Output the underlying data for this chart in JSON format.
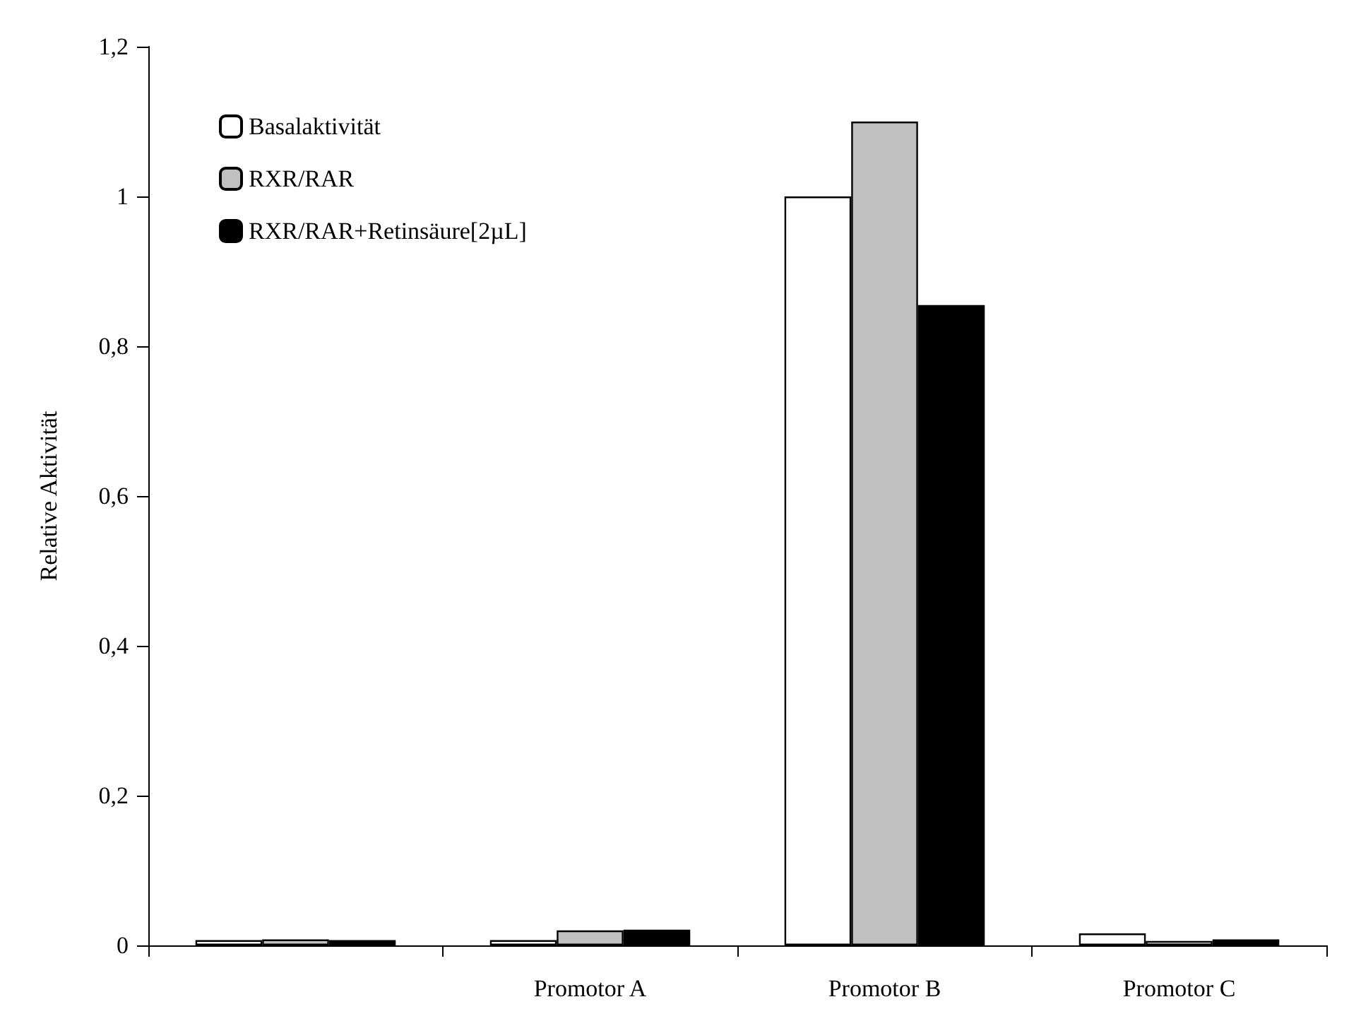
{
  "chart_data": {
    "type": "bar",
    "ylabel": "Relative Aktivität",
    "categories": [
      null,
      "Promotor A",
      "Promotor B",
      "Promotor C"
    ],
    "series": [
      {
        "name": "Basalaktivität",
        "color": "#ffffff",
        "values": [
          0.007,
          0.007,
          1.0,
          0.016
        ]
      },
      {
        "name": "RXR/RAR",
        "color": "#c0c0c0",
        "values": [
          0.008,
          0.02,
          1.1,
          0.006
        ]
      },
      {
        "name": "RXR/RAR+Retinsäure[2µL]",
        "color": "#000000",
        "values": [
          0.007,
          0.021,
          0.855,
          0.008
        ]
      }
    ],
    "ylim": [
      0,
      1.2
    ],
    "yticks": [
      0,
      {
        "value": 0.2,
        "label": "0,2"
      },
      {
        "value": 0.4,
        "label": "0,4"
      },
      {
        "value": 0.6,
        "label": "0,6"
      },
      {
        "value": 0.8,
        "label": "0,8"
      },
      1,
      {
        "value": 1.2,
        "label": "1,2"
      }
    ],
    "grid": false,
    "legend": "top left"
  }
}
